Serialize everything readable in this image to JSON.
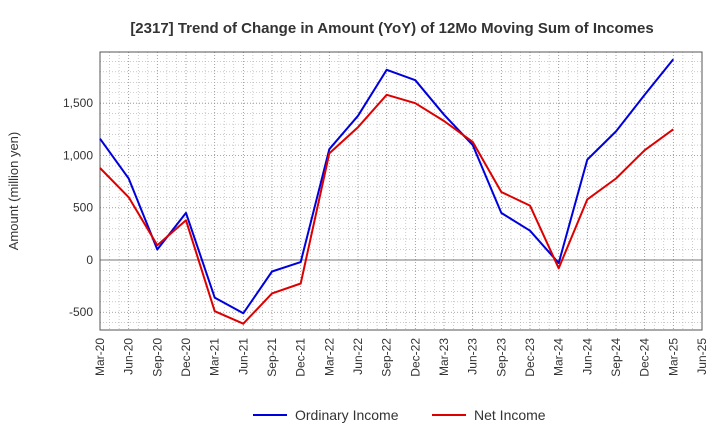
{
  "chart_data": {
    "type": "line",
    "title": "[2317]  Trend of Change in Amount (YoY) of 12Mo Moving Sum of Incomes",
    "xlabel": "",
    "ylabel": "Amount (million yen)",
    "ylim": [
      -670,
      1990
    ],
    "yticks": [
      -500,
      0,
      500,
      1000,
      1500
    ],
    "ytick_labels": [
      "-500",
      "0",
      "500",
      "1,000",
      "1,500"
    ],
    "categories": [
      "Mar-20",
      "Jun-20",
      "Sep-20",
      "Dec-20",
      "Mar-21",
      "Jun-21",
      "Sep-21",
      "Dec-21",
      "Mar-22",
      "Jun-22",
      "Sep-22",
      "Dec-22",
      "Mar-23",
      "Jun-23",
      "Sep-23",
      "Dec-23",
      "Mar-24",
      "Jun-24",
      "Sep-24",
      "Dec-24",
      "Mar-25",
      "Jun-25"
    ],
    "grid": true,
    "legend_position": "bottom-center",
    "series": [
      {
        "name": "Ordinary Income",
        "color": "#0000dd",
        "values": [
          1160,
          780,
          100,
          450,
          -360,
          -510,
          -110,
          -20,
          1060,
          1380,
          1820,
          1720,
          1390,
          1100,
          450,
          280,
          -30,
          960,
          1230,
          1580,
          1920,
          null
        ]
      },
      {
        "name": "Net Income",
        "color": "#dd0000",
        "values": [
          880,
          600,
          140,
          380,
          -490,
          -610,
          -320,
          -225,
          1020,
          1270,
          1580,
          1500,
          1330,
          1130,
          650,
          520,
          -80,
          580,
          780,
          1050,
          1250,
          null
        ]
      }
    ]
  }
}
